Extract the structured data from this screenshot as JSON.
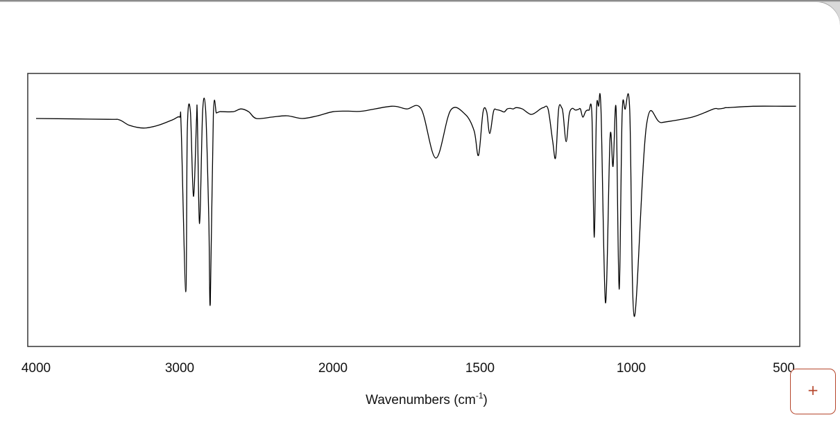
{
  "chart_data": {
    "type": "line",
    "title": "",
    "xlabel": "Wavenumbers (cm⁻¹)",
    "xlabel_main": "Wavenumbers (cm",
    "xlabel_sup": "-1",
    "xlabel_end": ")",
    "ylabel": "",
    "x_reversed": true,
    "xlim": [
      4000,
      450
    ],
    "ylim": [
      0,
      1
    ],
    "grid": false,
    "xticks": [
      4000,
      3000,
      2000,
      1500,
      1000,
      500
    ],
    "xtick_labels": [
      "4000",
      "3000",
      "2000",
      "1500",
      "1000",
      "500"
    ],
    "series": [
      {
        "x": [
          4000,
          3500,
          3420,
          3350,
          3250,
          3150,
          3050,
          3000,
          2990,
          2960,
          2950,
          2930,
          2910,
          2890,
          2885,
          2870,
          2850,
          2830,
          2810,
          2800,
          2780,
          2760,
          2740,
          2720,
          2650,
          2600,
          2550,
          2500,
          2400,
          2300,
          2200,
          2100,
          2000,
          1950,
          1900,
          1800,
          1750,
          1700,
          1650,
          1600,
          1550,
          1520,
          1505,
          1490,
          1478,
          1468,
          1455,
          1445,
          1432,
          1420,
          1410,
          1400,
          1390,
          1380,
          1360,
          1330,
          1300,
          1290,
          1275,
          1260,
          1250,
          1240,
          1230,
          1225,
          1215,
          1205,
          1195,
          1185,
          1175,
          1168,
          1160,
          1150,
          1140,
          1130,
          1122,
          1115,
          1108,
          1100,
          1085,
          1070,
          1060,
          1050,
          1040,
          1030,
          1020,
          1005,
          990,
          950,
          900,
          800,
          730,
          715,
          700,
          690,
          680,
          600,
          500,
          460
        ],
        "y": [
          0.835,
          0.832,
          0.83,
          0.81,
          0.8,
          0.81,
          0.83,
          0.84,
          0.8,
          0.2,
          0.8,
          0.86,
          0.55,
          0.83,
          0.85,
          0.45,
          0.86,
          0.86,
          0.47,
          0.16,
          0.85,
          0.855,
          0.86,
          0.86,
          0.86,
          0.87,
          0.86,
          0.835,
          0.84,
          0.845,
          0.835,
          0.845,
          0.86,
          0.862,
          0.862,
          0.88,
          0.87,
          0.87,
          0.69,
          0.865,
          0.85,
          0.79,
          0.7,
          0.859,
          0.86,
          0.78,
          0.862,
          0.867,
          0.864,
          0.859,
          0.87,
          0.872,
          0.87,
          0.875,
          0.87,
          0.85,
          0.87,
          0.875,
          0.87,
          0.755,
          0.692,
          0.87,
          0.875,
          0.85,
          0.75,
          0.85,
          0.872,
          0.866,
          0.868,
          0.87,
          0.84,
          0.862,
          0.865,
          0.85,
          0.4,
          0.86,
          0.88,
          0.87,
          0.16,
          0.765,
          0.66,
          0.87,
          0.21,
          0.85,
          0.869,
          0.869,
          0.11,
          0.81,
          0.82,
          0.84,
          0.87,
          0.87,
          0.872,
          0.875,
          0.875,
          0.88,
          0.88,
          0.88
        ]
      }
    ]
  },
  "ui": {
    "add_button_label": "+"
  }
}
